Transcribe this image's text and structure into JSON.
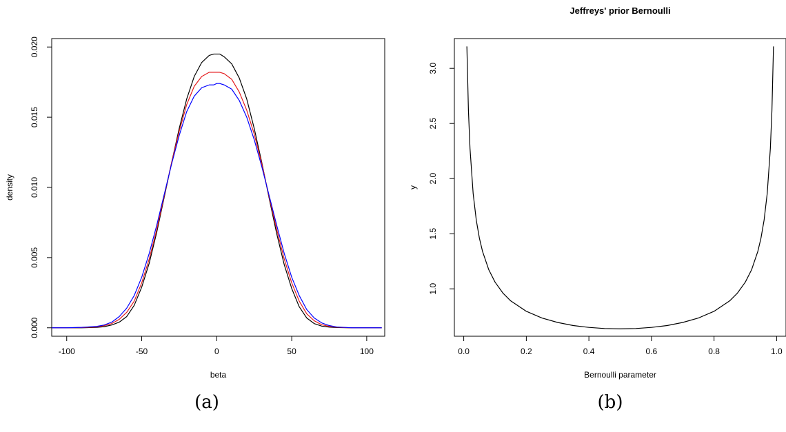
{
  "chart_data": [
    {
      "type": "line",
      "title": "",
      "xlabel": "beta",
      "ylabel": "density",
      "caption": "(a)",
      "xlim": [
        -110,
        112
      ],
      "ylim": [
        -0.0006,
        0.0206
      ],
      "xticks": [
        -100,
        -50,
        0,
        50,
        100
      ],
      "xtick_labels": [
        "-100",
        "-50",
        "0",
        "50",
        "100"
      ],
      "yticks": [
        0.0,
        0.005,
        0.01,
        0.015,
        0.02
      ],
      "ytick_labels": [
        "0.000",
        "0.005",
        "0.010",
        "0.015",
        "0.020"
      ],
      "grid": false,
      "x": [
        -110,
        -100,
        -90,
        -80,
        -75,
        -70,
        -65,
        -60,
        -55,
        -50,
        -45,
        -40,
        -35,
        -30,
        -25,
        -20,
        -15,
        -10,
        -5,
        -2,
        0,
        2,
        5,
        10,
        15,
        20,
        25,
        30,
        35,
        40,
        45,
        50,
        55,
        60,
        65,
        70,
        75,
        80,
        90,
        100,
        110
      ],
      "series": [
        {
          "color": "#000000",
          "values": [
            0.0,
            0.0,
            0.0,
            3e-05,
            8e-05,
            0.0002,
            0.0004,
            0.0008,
            0.0016,
            0.0029,
            0.0046,
            0.0068,
            0.0093,
            0.0118,
            0.0142,
            0.0163,
            0.0179,
            0.0189,
            0.0194,
            0.0195,
            0.0195,
            0.0195,
            0.0193,
            0.0188,
            0.0178,
            0.0163,
            0.0142,
            0.0118,
            0.0092,
            0.0067,
            0.0045,
            0.0028,
            0.0015,
            0.0007,
            0.0003,
            0.00012,
            5e-05,
            2e-05,
            0.0,
            0.0,
            0.0
          ]
        },
        {
          "color": "#e41a1c",
          "values": [
            0.0,
            0.0,
            2e-05,
            6e-05,
            0.00015,
            0.0003,
            0.0006,
            0.0011,
            0.0019,
            0.0032,
            0.0049,
            0.007,
            0.0094,
            0.0118,
            0.014,
            0.0159,
            0.0172,
            0.0179,
            0.0182,
            0.0182,
            0.0182,
            0.0182,
            0.0181,
            0.0177,
            0.0168,
            0.0155,
            0.0138,
            0.0117,
            0.0093,
            0.007,
            0.0049,
            0.0032,
            0.0019,
            0.001,
            0.0005,
            0.00022,
            0.0001,
            4e-05,
            0.0,
            0.0,
            0.0
          ]
        },
        {
          "color": "#0000ff",
          "values": [
            0.0,
            0.0,
            3e-05,
            0.0001,
            0.0002,
            0.0004,
            0.0008,
            0.0014,
            0.0023,
            0.0036,
            0.0053,
            0.0073,
            0.0095,
            0.0117,
            0.0137,
            0.0154,
            0.0165,
            0.0171,
            0.0173,
            0.0173,
            0.0174,
            0.0174,
            0.0173,
            0.017,
            0.0162,
            0.015,
            0.0134,
            0.0115,
            0.0094,
            0.0073,
            0.0053,
            0.0036,
            0.0023,
            0.0013,
            0.0007,
            0.00035,
            0.00016,
            6e-05,
            0.0,
            0.0,
            0.0
          ]
        }
      ]
    },
    {
      "type": "line",
      "title": "Jeffreys' prior Bernoulli",
      "xlabel": "Bernoulli parameter",
      "ylabel": "y",
      "caption": "(b)",
      "xlim": [
        -0.03,
        1.03
      ],
      "ylim": [
        0.57,
        3.27
      ],
      "xticks": [
        0.0,
        0.2,
        0.4,
        0.6,
        0.8,
        1.0
      ],
      "xtick_labels": [
        "0.0",
        "0.2",
        "0.4",
        "0.6",
        "0.8",
        "1.0"
      ],
      "yticks": [
        1.0,
        1.5,
        2.0,
        2.5,
        3.0
      ],
      "ytick_labels": [
        "1.0",
        "1.5",
        "2.0",
        "2.5",
        "3.0"
      ],
      "grid": false,
      "x": [
        0.01,
        0.015,
        0.02,
        0.03,
        0.04,
        0.05,
        0.06,
        0.08,
        0.1,
        0.125,
        0.15,
        0.2,
        0.25,
        0.3,
        0.35,
        0.4,
        0.45,
        0.5,
        0.55,
        0.6,
        0.65,
        0.7,
        0.75,
        0.8,
        0.85,
        0.875,
        0.9,
        0.92,
        0.94,
        0.95,
        0.96,
        0.97,
        0.98,
        0.985,
        0.99
      ],
      "series": [
        {
          "color": "#000000",
          "values": [
            3.199,
            2.616,
            2.273,
            1.866,
            1.624,
            1.46,
            1.34,
            1.173,
            1.061,
            0.962,
            0.891,
            0.796,
            0.735,
            0.695,
            0.667,
            0.65,
            0.64,
            0.637,
            0.64,
            0.65,
            0.667,
            0.695,
            0.735,
            0.796,
            0.891,
            0.962,
            1.061,
            1.173,
            1.34,
            1.46,
            1.624,
            1.866,
            2.273,
            2.616,
            3.199
          ]
        }
      ]
    }
  ]
}
